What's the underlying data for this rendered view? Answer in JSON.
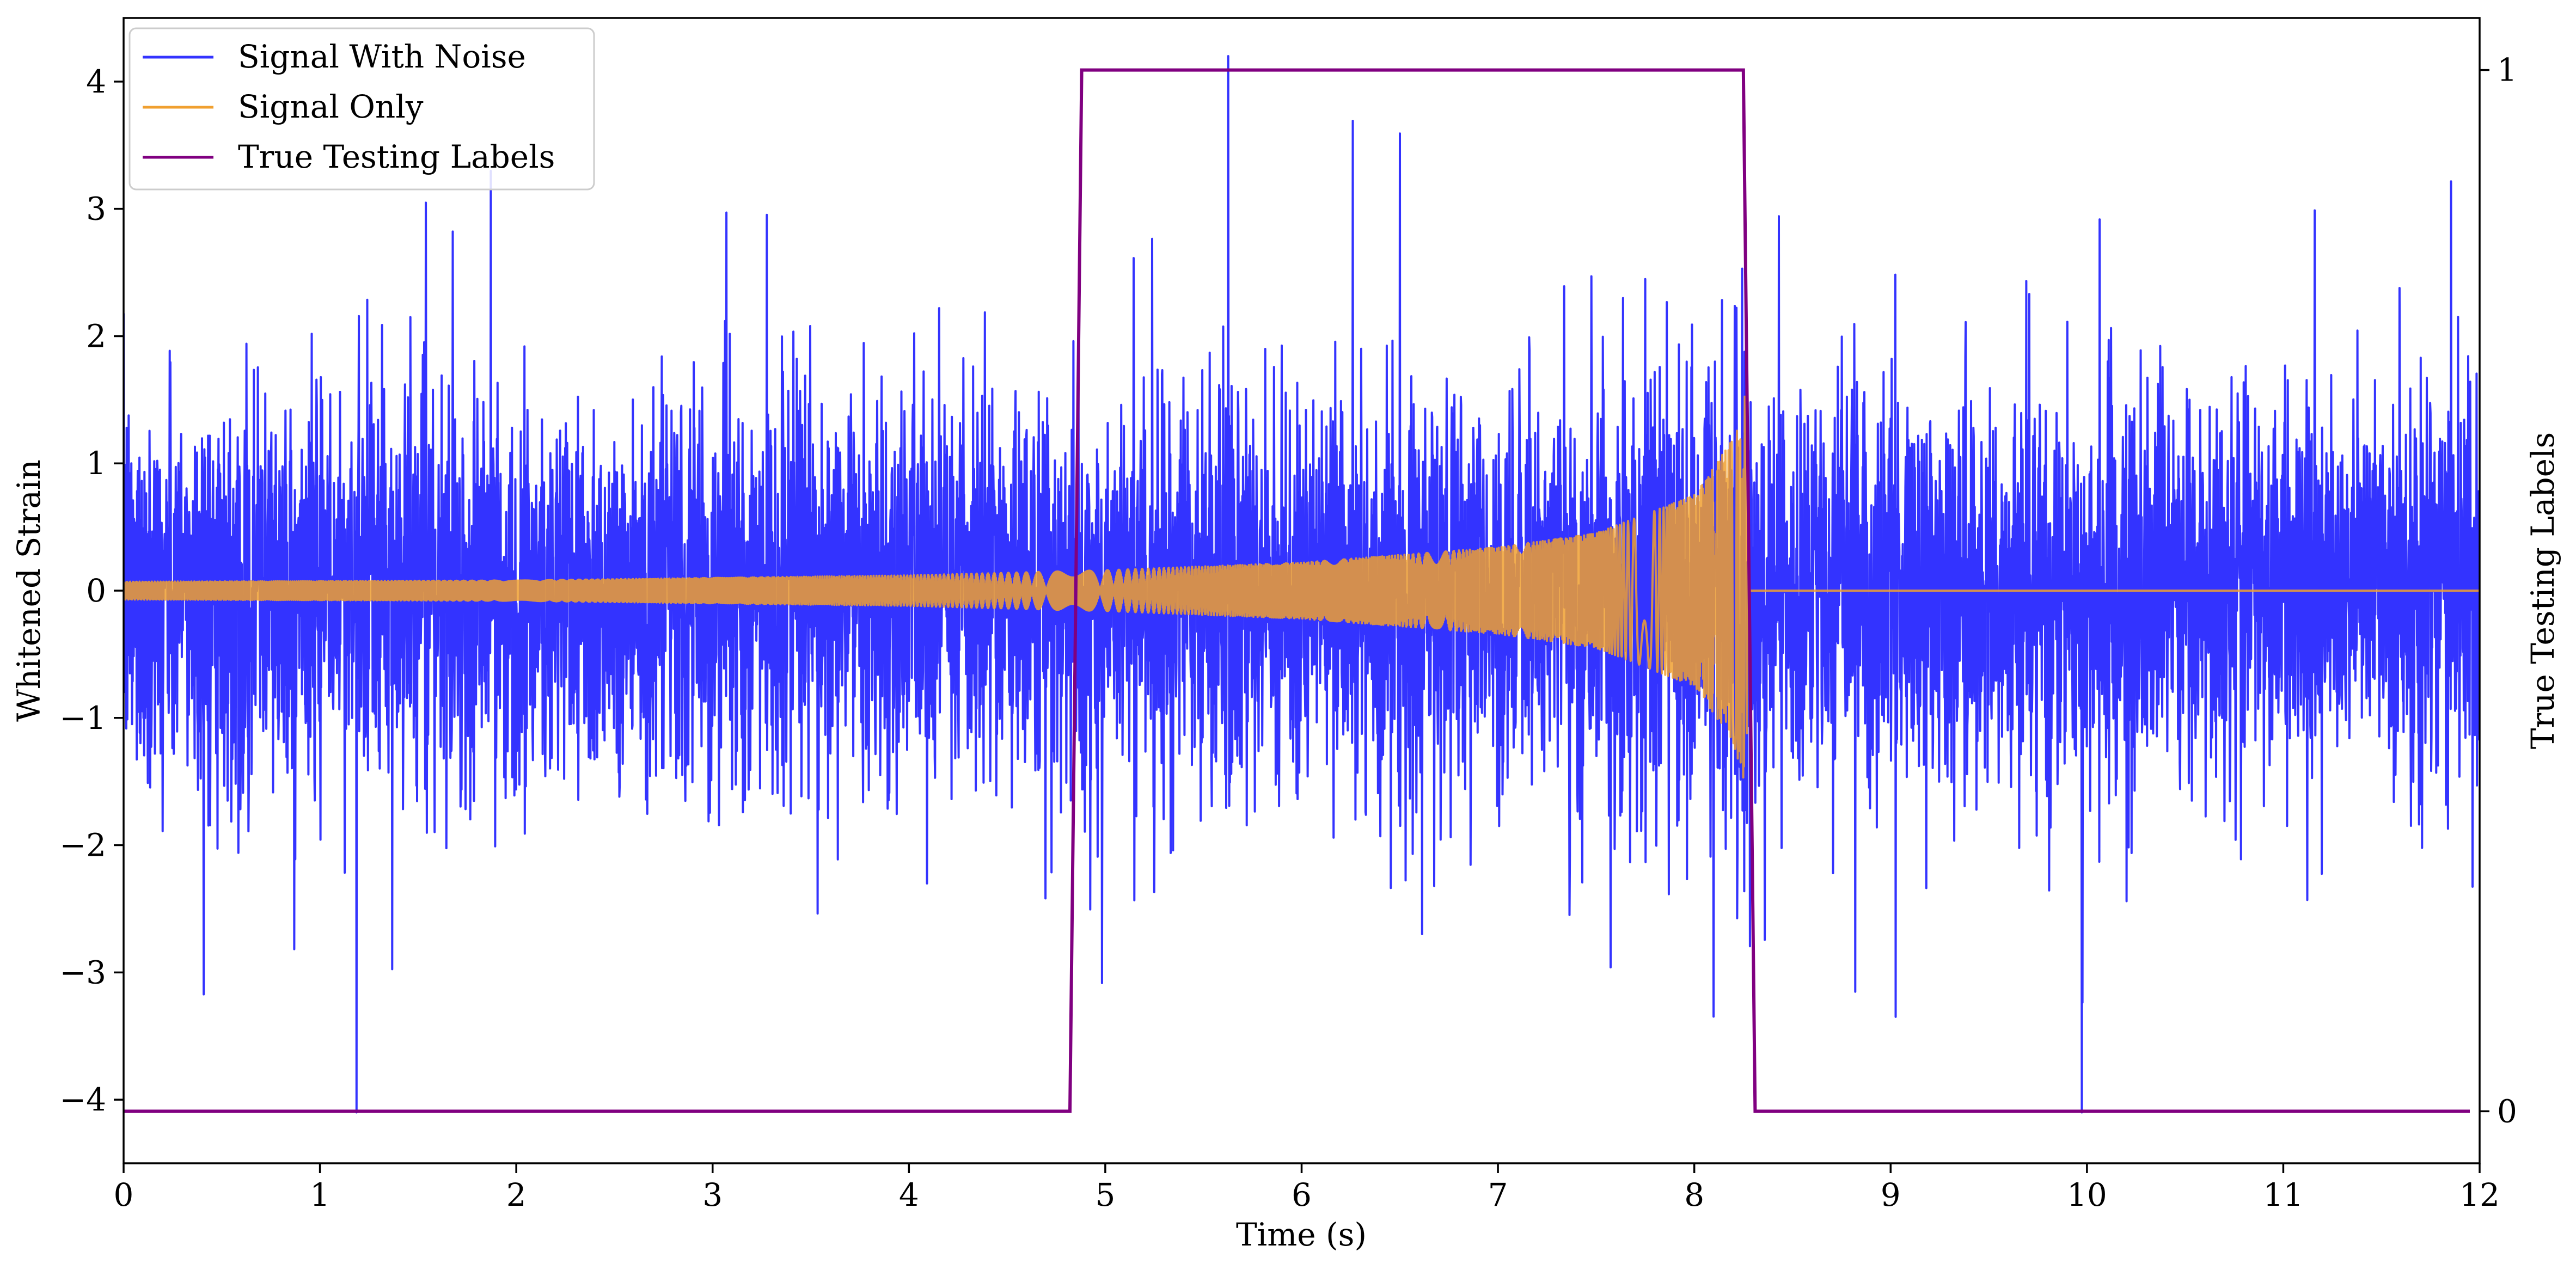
{
  "chart_data": {
    "type": "line",
    "title": "",
    "xlabel": "Time (s)",
    "ylabel": "Whitened Strain",
    "y2label": "True Testing Labels",
    "xlim": [
      0,
      12
    ],
    "ylim": [
      -4.5,
      4.5
    ],
    "y2lim": [
      -0.05,
      1.05
    ],
    "x_ticks": [
      0,
      1,
      2,
      3,
      4,
      5,
      6,
      7,
      8,
      9,
      10,
      11,
      12
    ],
    "x_tick_labels": [
      "0",
      "1",
      "2",
      "3",
      "4",
      "5",
      "6",
      "7",
      "8",
      "9",
      "10",
      "11",
      "12"
    ],
    "y_ticks": [
      -4,
      -3,
      -2,
      -1,
      0,
      1,
      2,
      3,
      4
    ],
    "y_tick_labels": [
      "−4",
      "−3",
      "−2",
      "−1",
      "0",
      "1",
      "2",
      "3",
      "4"
    ],
    "y2_ticks": [
      0,
      1
    ],
    "y2_tick_labels": [
      "0",
      "1"
    ],
    "grid": false,
    "legend_position": "upper-left",
    "series": [
      {
        "name": "Signal With Noise",
        "color": "#3333ff",
        "axis": "left",
        "description_of_values": "whitened detector strain, approximately zero-mean noise with std ~0.8, spikes reaching about +4.2 and -4.1",
        "x_range": [
          0,
          12
        ],
        "noise_std": 0.8,
        "max_value": 4.2,
        "min_value": -4.1
      },
      {
        "name": "Signal Only",
        "color": "#f0a030",
        "axis": "left",
        "description_of_values": "chirp waveform, oscillation amplitude growing from ~0.07 at t=0 to ~1.6 at t=8.27, zero after merger",
        "amplitude_points": [
          {
            "x": 0.0,
            "amplitude": 0.07
          },
          {
            "x": 2.0,
            "amplitude": 0.08
          },
          {
            "x": 4.0,
            "amplitude": 0.12
          },
          {
            "x": 5.0,
            "amplitude": 0.16
          },
          {
            "x": 6.0,
            "amplitude": 0.22
          },
          {
            "x": 7.0,
            "amplitude": 0.34
          },
          {
            "x": 7.5,
            "amplitude": 0.45
          },
          {
            "x": 8.0,
            "amplitude": 0.75
          },
          {
            "x": 8.2,
            "amplitude": 1.2
          },
          {
            "x": 8.27,
            "amplitude": 1.6
          }
        ],
        "merger_time": 8.27,
        "after_merger_value": 0
      },
      {
        "name": "True Testing Labels",
        "color": "#800080",
        "axis": "right",
        "x": [
          0,
          4.82,
          4.88,
          8.25,
          8.31,
          11.95
        ],
        "values": [
          0,
          0,
          1,
          1,
          0,
          0
        ]
      }
    ]
  }
}
